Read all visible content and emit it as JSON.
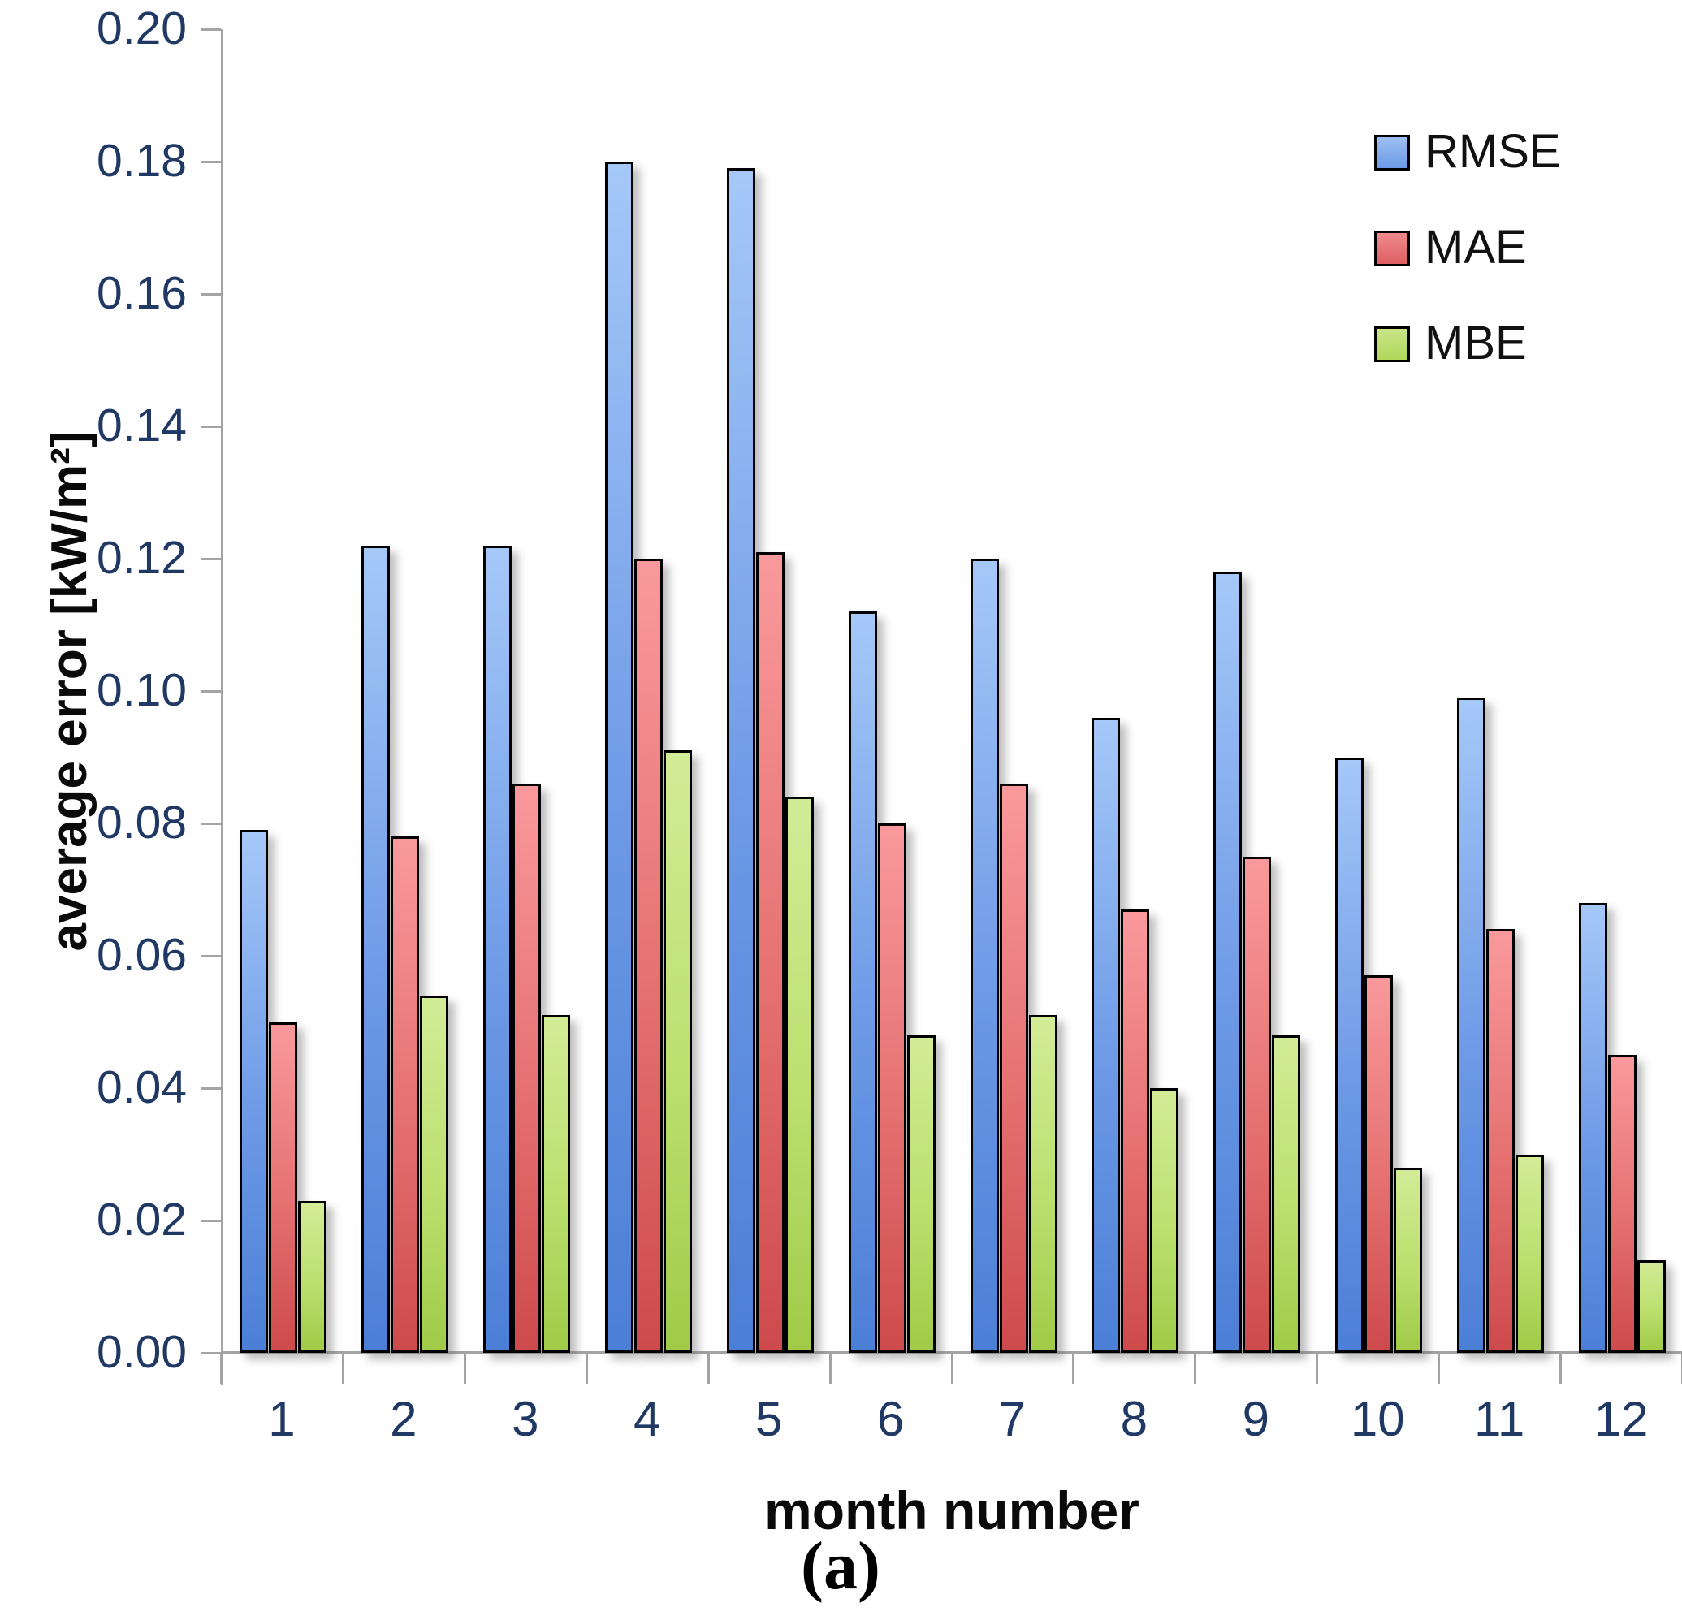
{
  "figure": {
    "caption": "(a)"
  },
  "chart_data": {
    "type": "bar",
    "title": "",
    "xlabel": "month number",
    "ylabel": "average error [kW/m²]",
    "categories": [
      "1",
      "2",
      "3",
      "4",
      "5",
      "6",
      "7",
      "8",
      "9",
      "10",
      "11",
      "12"
    ],
    "series": [
      {
        "name": "RMSE",
        "color": "#6D99E6",
        "values": [
          0.079,
          0.122,
          0.122,
          0.18,
          0.179,
          0.112,
          0.12,
          0.096,
          0.118,
          0.09,
          0.099,
          0.068
        ]
      },
      {
        "name": "MAE",
        "color": "#E57070",
        "values": [
          0.05,
          0.078,
          0.086,
          0.12,
          0.121,
          0.08,
          0.086,
          0.067,
          0.075,
          0.057,
          0.064,
          0.045
        ]
      },
      {
        "name": "MBE",
        "color": "#BCDF6E",
        "values": [
          0.023,
          0.054,
          0.051,
          0.091,
          0.084,
          0.048,
          0.051,
          0.04,
          0.048,
          0.028,
          0.03,
          0.014
        ]
      }
    ],
    "ylim": [
      0,
      0.2
    ],
    "ytick_step": 0.02,
    "ytick_labels": [
      "0.00",
      "0.02",
      "0.04",
      "0.06",
      "0.08",
      "0.10",
      "0.12",
      "0.14",
      "0.16",
      "0.18",
      "0.20"
    ],
    "legend_position": "top-right",
    "grid": false
  }
}
